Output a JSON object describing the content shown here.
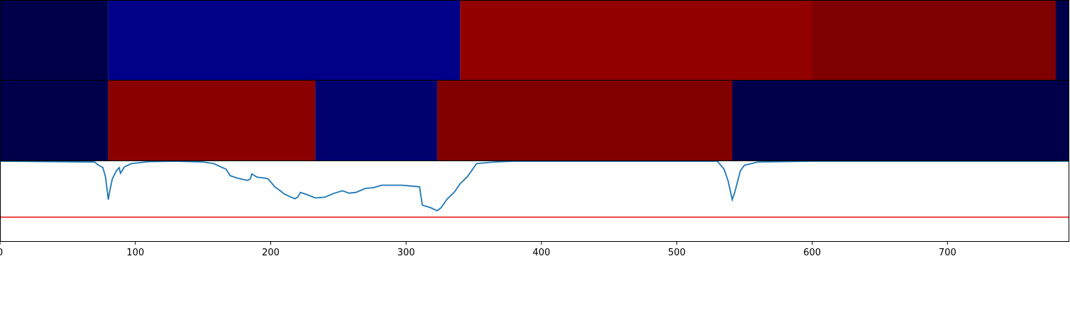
{
  "chart_data": {
    "type": "heatmap",
    "xlim": [
      0,
      790
    ],
    "x_ticks": [
      0,
      100,
      200,
      300,
      400,
      500,
      600,
      700
    ],
    "x_tick_labels": [
      "0",
      "100",
      "200",
      "300",
      "400",
      "500",
      "600",
      "700"
    ],
    "grid": false,
    "legend": "none",
    "rows": [
      {
        "segments": [
          {
            "start": 0,
            "end": 80,
            "color": "#00004a"
          },
          {
            "start": 80,
            "end": 340,
            "color": "#000088"
          },
          {
            "start": 340,
            "end": 600,
            "color": "#920000"
          },
          {
            "start": 600,
            "end": 780,
            "color": "#7e0000"
          },
          {
            "start": 780,
            "end": 790,
            "color": "#00004a"
          }
        ]
      },
      {
        "segments": [
          {
            "start": 0,
            "end": 80,
            "color": "#00004a"
          },
          {
            "start": 80,
            "end": 233,
            "color": "#8a0000"
          },
          {
            "start": 233,
            "end": 323,
            "color": "#00006e"
          },
          {
            "start": 323,
            "end": 541,
            "color": "#800000"
          },
          {
            "start": 541,
            "end": 790,
            "color": "#00004a"
          }
        ]
      }
    ],
    "line_panel": {
      "ylim": [
        0,
        1
      ],
      "threshold": 0.3,
      "threshold_color": "#e31a1c",
      "line_color": "#1f77b4",
      "points": [
        [
          0,
          1.0
        ],
        [
          70,
          0.99
        ],
        [
          72,
          0.96
        ],
        [
          76,
          0.92
        ],
        [
          78,
          0.8
        ],
        [
          80,
          0.52
        ],
        [
          81,
          0.62
        ],
        [
          83,
          0.78
        ],
        [
          86,
          0.88
        ],
        [
          88,
          0.92
        ],
        [
          89,
          0.85
        ],
        [
          92,
          0.93
        ],
        [
          97,
          0.97
        ],
        [
          110,
          0.995
        ],
        [
          130,
          1.0
        ],
        [
          150,
          0.99
        ],
        [
          158,
          0.97
        ],
        [
          163,
          0.93
        ],
        [
          167,
          0.9
        ],
        [
          170,
          0.82
        ],
        [
          175,
          0.79
        ],
        [
          180,
          0.77
        ],
        [
          183,
          0.76
        ],
        [
          185,
          0.78
        ],
        [
          186,
          0.84
        ],
        [
          190,
          0.8
        ],
        [
          195,
          0.79
        ],
        [
          198,
          0.78
        ],
        [
          200,
          0.74
        ],
        [
          203,
          0.68
        ],
        [
          207,
          0.63
        ],
        [
          210,
          0.59
        ],
        [
          215,
          0.55
        ],
        [
          218,
          0.53
        ],
        [
          220,
          0.55
        ],
        [
          222,
          0.61
        ],
        [
          227,
          0.58
        ],
        [
          233,
          0.54
        ],
        [
          240,
          0.55
        ],
        [
          247,
          0.6
        ],
        [
          253,
          0.63
        ],
        [
          258,
          0.6
        ],
        [
          263,
          0.61
        ],
        [
          270,
          0.66
        ],
        [
          276,
          0.67
        ],
        [
          282,
          0.7
        ],
        [
          290,
          0.7
        ],
        [
          297,
          0.7
        ],
        [
          303,
          0.69
        ],
        [
          310,
          0.68
        ],
        [
          312,
          0.45
        ],
        [
          318,
          0.42
        ],
        [
          323,
          0.38
        ],
        [
          326,
          0.42
        ],
        [
          330,
          0.52
        ],
        [
          336,
          0.62
        ],
        [
          340,
          0.72
        ],
        [
          345,
          0.8
        ],
        [
          348,
          0.87
        ],
        [
          352,
          0.97
        ],
        [
          365,
          0.99
        ],
        [
          380,
          1.0
        ],
        [
          450,
          1.0
        ],
        [
          530,
          1.0
        ],
        [
          535,
          0.9
        ],
        [
          538,
          0.75
        ],
        [
          541,
          0.52
        ],
        [
          543,
          0.62
        ],
        [
          545,
          0.75
        ],
        [
          547,
          0.88
        ],
        [
          550,
          0.95
        ],
        [
          560,
          0.99
        ],
        [
          600,
          1.0
        ],
        [
          700,
          1.0
        ],
        [
          790,
          1.0
        ]
      ]
    }
  }
}
